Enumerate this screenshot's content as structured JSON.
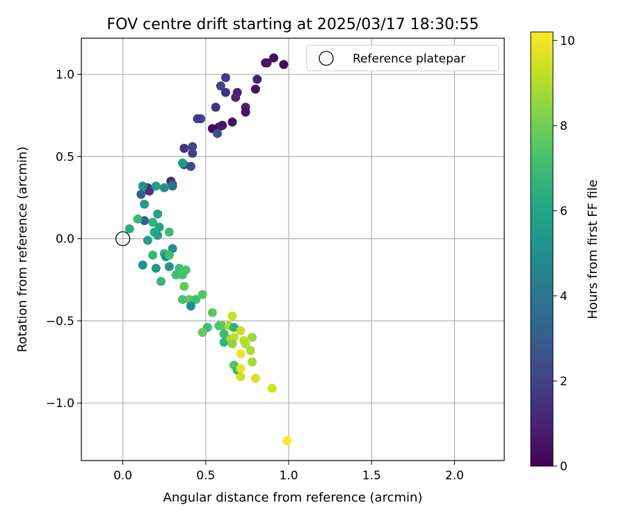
{
  "chart_data": {
    "type": "scatter",
    "title": "FOV centre drift starting at 2025/03/17 18:30:55",
    "xlabel": "Angular distance from reference (arcmin)",
    "ylabel": "Rotation from reference (arcmin)",
    "xlim": [
      -0.25,
      2.3
    ],
    "ylim": [
      -1.35,
      1.22
    ],
    "xticks": [
      0.0,
      0.5,
      1.0,
      1.5,
      2.0
    ],
    "xtick_labels": [
      "0.0",
      "0.5",
      "1.0",
      "1.5",
      "2.0"
    ],
    "yticks": [
      -1.0,
      -0.5,
      0.0,
      0.5,
      1.0
    ],
    "ytick_labels": [
      "−1.0",
      "−0.5",
      "0.0",
      "0.5",
      "1.0"
    ],
    "grid": true,
    "legend": {
      "location": "upper right",
      "entries": [
        {
          "label": "Reference platepar",
          "marker": "open-circle"
        }
      ]
    },
    "reference": {
      "x": 0.0,
      "y": 0.0,
      "label": "Reference platepar"
    },
    "colorbar": {
      "label": "Hours from first FF file",
      "colormap": "viridis",
      "range": [
        0,
        10.2
      ],
      "ticks": [
        0,
        2,
        4,
        6,
        8,
        10
      ],
      "tick_labels": [
        "0",
        "2",
        "4",
        "6",
        "8",
        "10"
      ]
    },
    "series": [
      {
        "points": [
          {
            "x": 0.97,
            "y": 1.06,
            "c": 0.3
          },
          {
            "x": 0.91,
            "y": 1.1,
            "c": 0.4
          },
          {
            "x": 0.86,
            "y": 1.07,
            "c": 0.5
          },
          {
            "x": 0.87,
            "y": 1.07,
            "c": 0.6
          },
          {
            "x": 0.81,
            "y": 0.97,
            "c": 1.0
          },
          {
            "x": 0.8,
            "y": 0.91,
            "c": 0.5
          },
          {
            "x": 0.74,
            "y": 0.8,
            "c": 1.0
          },
          {
            "x": 0.74,
            "y": 0.77,
            "c": 0.6
          },
          {
            "x": 0.69,
            "y": 0.89,
            "c": 1.0
          },
          {
            "x": 0.68,
            "y": 0.86,
            "c": 1.1
          },
          {
            "x": 0.66,
            "y": 0.71,
            "c": 0.4
          },
          {
            "x": 0.62,
            "y": 0.98,
            "c": 1.8
          },
          {
            "x": 0.62,
            "y": 0.89,
            "c": 1.4
          },
          {
            "x": 0.59,
            "y": 0.93,
            "c": 2.0
          },
          {
            "x": 0.6,
            "y": 0.69,
            "c": 0.5
          },
          {
            "x": 0.58,
            "y": 0.68,
            "c": 0.7
          },
          {
            "x": 0.54,
            "y": 0.67,
            "c": 0.3
          },
          {
            "x": 0.56,
            "y": 0.8,
            "c": 1.5
          },
          {
            "x": 0.57,
            "y": 0.64,
            "c": 2.5
          },
          {
            "x": 0.47,
            "y": 0.73,
            "c": 2.2
          },
          {
            "x": 0.45,
            "y": 0.73,
            "c": 1.8
          },
          {
            "x": 0.42,
            "y": 0.56,
            "c": 2.2
          },
          {
            "x": 0.42,
            "y": 0.52,
            "c": 1.9
          },
          {
            "x": 0.37,
            "y": 0.55,
            "c": 1.5
          },
          {
            "x": 0.37,
            "y": 0.45,
            "c": 2.0
          },
          {
            "x": 0.41,
            "y": 0.44,
            "c": 2.2
          },
          {
            "x": 0.29,
            "y": 0.35,
            "c": 1.2
          },
          {
            "x": 0.3,
            "y": 0.33,
            "c": 2.7
          },
          {
            "x": 0.15,
            "y": 0.31,
            "c": 1.8
          },
          {
            "x": 0.16,
            "y": 0.29,
            "c": 1.5
          },
          {
            "x": 0.11,
            "y": 0.27,
            "c": 3.0
          },
          {
            "x": 0.3,
            "y": 0.32,
            "c": 4.0
          },
          {
            "x": 0.25,
            "y": 0.31,
            "c": 5.0
          },
          {
            "x": 0.2,
            "y": 0.32,
            "c": 5.6
          },
          {
            "x": 0.12,
            "y": 0.32,
            "c": 5.2
          },
          {
            "x": 0.36,
            "y": 0.46,
            "c": 5.5
          },
          {
            "x": 0.13,
            "y": 0.21,
            "c": 5.5
          },
          {
            "x": 0.21,
            "y": 0.15,
            "c": 5.8
          },
          {
            "x": 0.13,
            "y": 0.11,
            "c": 3.2
          },
          {
            "x": 0.18,
            "y": 0.1,
            "c": 6.5
          },
          {
            "x": 0.09,
            "y": 0.12,
            "c": 6.8
          },
          {
            "x": 0.04,
            "y": 0.06,
            "c": 6.3
          },
          {
            "x": 0.22,
            "y": 0.07,
            "c": 6.0
          },
          {
            "x": 0.19,
            "y": 0.04,
            "c": 6.3
          },
          {
            "x": 0.21,
            "y": 0.02,
            "c": 5.8
          },
          {
            "x": 0.28,
            "y": 0.04,
            "c": 7.0
          },
          {
            "x": 0.15,
            "y": -0.01,
            "c": 5.7
          },
          {
            "x": 0.3,
            "y": -0.06,
            "c": 5.0
          },
          {
            "x": 0.25,
            "y": -0.09,
            "c": 6.6
          },
          {
            "x": 0.26,
            "y": -0.11,
            "c": 5.0
          },
          {
            "x": 0.28,
            "y": -0.1,
            "c": 7.0
          },
          {
            "x": 0.18,
            "y": -0.1,
            "c": 6.8
          },
          {
            "x": 0.12,
            "y": -0.16,
            "c": 5.2
          },
          {
            "x": 0.2,
            "y": -0.18,
            "c": 5.4
          },
          {
            "x": 0.28,
            "y": -0.17,
            "c": 5.3
          },
          {
            "x": 0.34,
            "y": -0.18,
            "c": 7.0
          },
          {
            "x": 0.38,
            "y": -0.19,
            "c": 7.3
          },
          {
            "x": 0.36,
            "y": -0.22,
            "c": 7.2
          },
          {
            "x": 0.32,
            "y": -0.22,
            "c": 7.1
          },
          {
            "x": 0.23,
            "y": -0.26,
            "c": 6.8
          },
          {
            "x": 0.37,
            "y": -0.29,
            "c": 7.7
          },
          {
            "x": 0.36,
            "y": -0.37,
            "c": 7.2
          },
          {
            "x": 0.4,
            "y": -0.37,
            "c": 7.6
          },
          {
            "x": 0.44,
            "y": -0.37,
            "c": 7.0
          },
          {
            "x": 0.41,
            "y": -0.41,
            "c": 5.0
          },
          {
            "x": 0.48,
            "y": -0.34,
            "c": 7.5
          },
          {
            "x": 0.54,
            "y": -0.45,
            "c": 7.6
          },
          {
            "x": 0.58,
            "y": -0.53,
            "c": 7.3
          },
          {
            "x": 0.51,
            "y": -0.54,
            "c": 7.0
          },
          {
            "x": 0.6,
            "y": -0.53,
            "c": 7.6
          },
          {
            "x": 0.64,
            "y": -0.53,
            "c": 8.9
          },
          {
            "x": 0.66,
            "y": -0.47,
            "c": 9.3
          },
          {
            "x": 0.67,
            "y": -0.54,
            "c": 6.5
          },
          {
            "x": 0.48,
            "y": -0.57,
            "c": 7.8
          },
          {
            "x": 0.61,
            "y": -0.58,
            "c": 7.0
          },
          {
            "x": 0.61,
            "y": -0.63,
            "c": 6.6
          },
          {
            "x": 0.65,
            "y": -0.61,
            "c": 8.7
          },
          {
            "x": 0.67,
            "y": -0.6,
            "c": 9.2
          },
          {
            "x": 0.71,
            "y": -0.56,
            "c": 9.3
          },
          {
            "x": 0.73,
            "y": -0.62,
            "c": 9.2
          },
          {
            "x": 0.74,
            "y": -0.64,
            "c": 9.0
          },
          {
            "x": 0.66,
            "y": -0.64,
            "c": 8.5
          },
          {
            "x": 0.78,
            "y": -0.6,
            "c": 8.7
          },
          {
            "x": 0.77,
            "y": -0.68,
            "c": 8.9
          },
          {
            "x": 0.71,
            "y": -0.7,
            "c": 10.0
          },
          {
            "x": 0.78,
            "y": -0.75,
            "c": 8.8
          },
          {
            "x": 0.67,
            "y": -0.77,
            "c": 7.4
          },
          {
            "x": 0.69,
            "y": -0.8,
            "c": 6.8
          },
          {
            "x": 0.71,
            "y": -0.79,
            "c": 9.8
          },
          {
            "x": 0.71,
            "y": -0.84,
            "c": 9.4
          },
          {
            "x": 0.8,
            "y": -0.85,
            "c": 9.6
          },
          {
            "x": 0.9,
            "y": -0.91,
            "c": 9.5
          },
          {
            "x": 0.99,
            "y": -1.23,
            "c": 10.2
          }
        ]
      }
    ]
  }
}
